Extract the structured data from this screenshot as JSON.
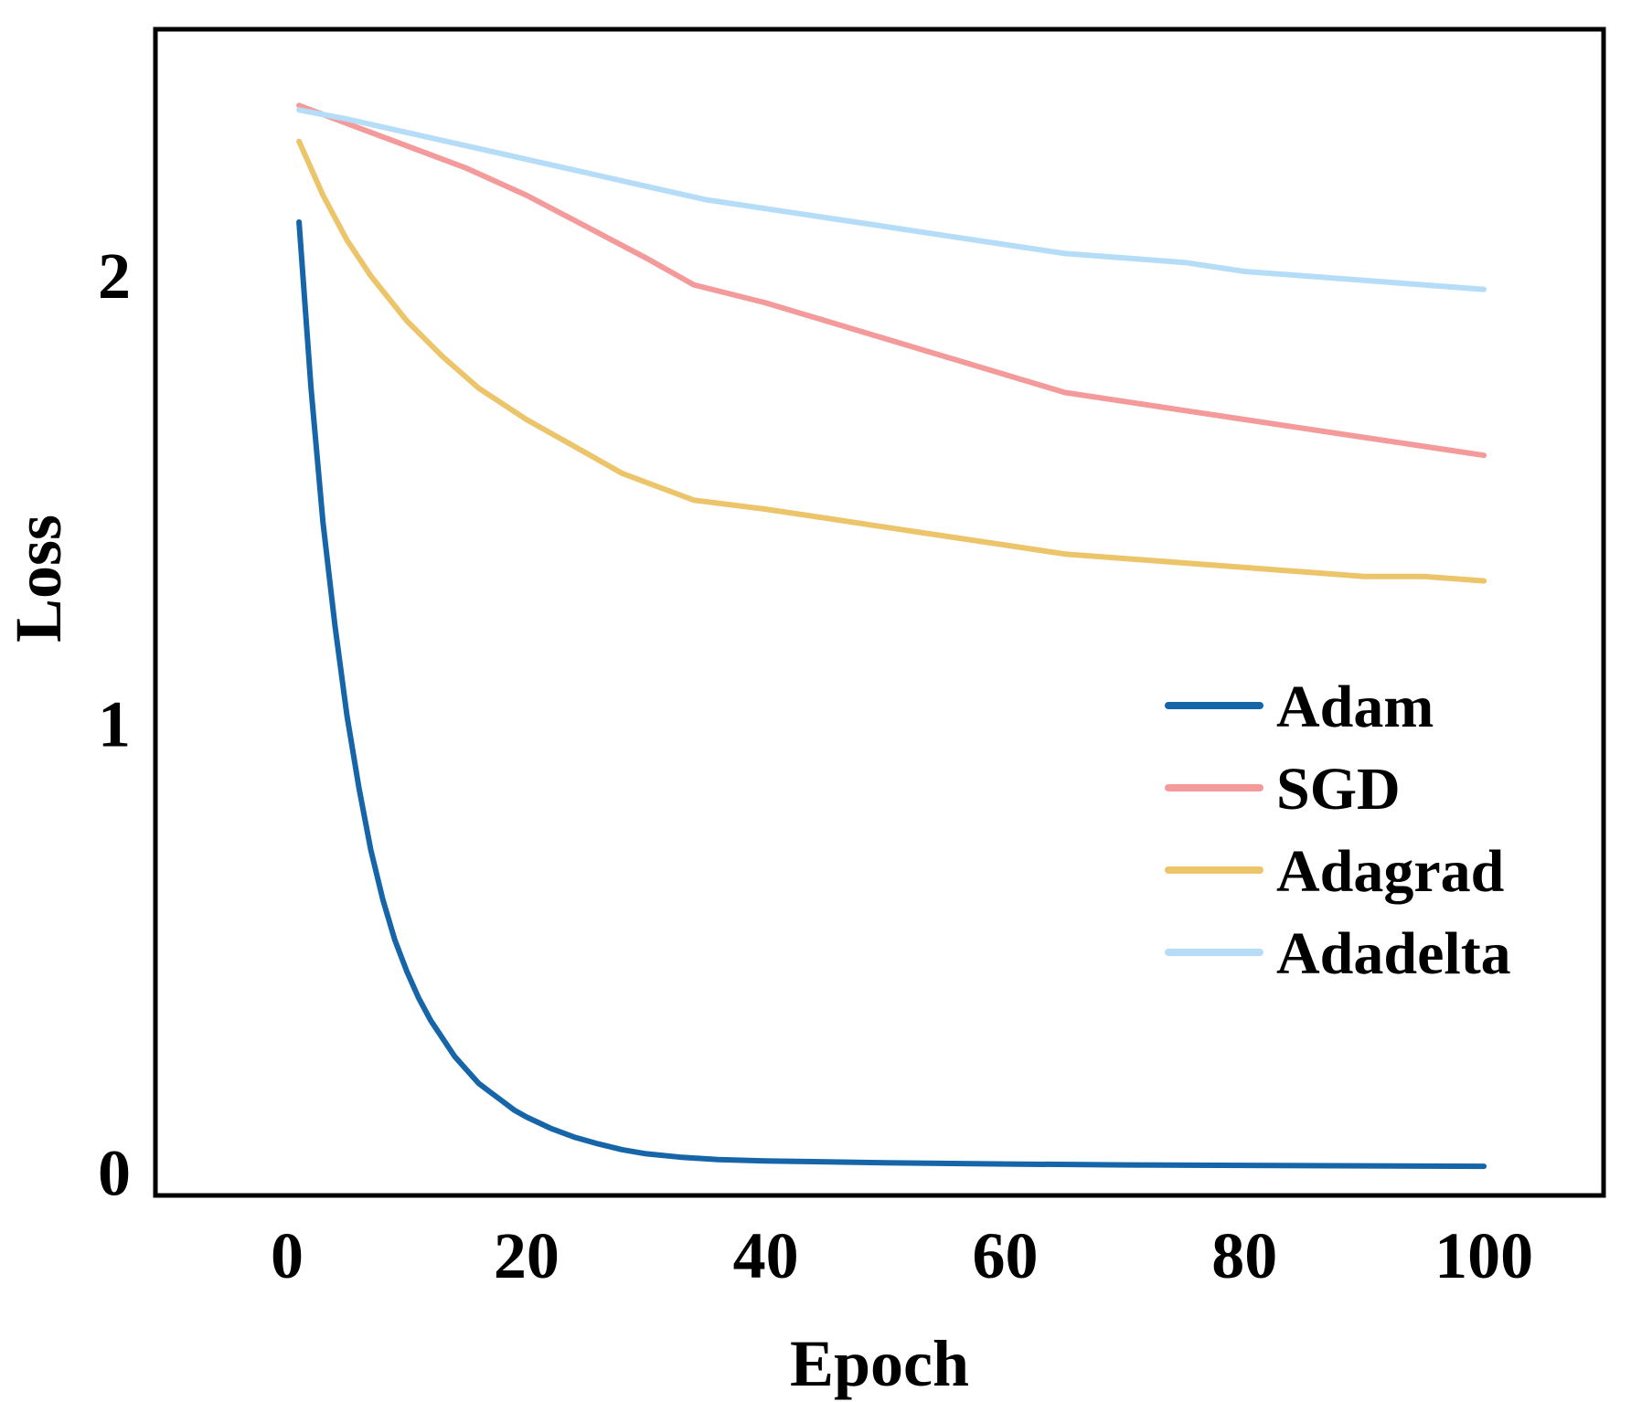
{
  "chart_data": {
    "type": "line",
    "title": "",
    "xlabel": "Epoch",
    "ylabel": "Loss",
    "xlim": [
      -11,
      110
    ],
    "ylim": [
      -0.05,
      2.55
    ],
    "xticks": [
      0,
      20,
      40,
      60,
      80,
      100
    ],
    "yticks": [
      0,
      1,
      2
    ],
    "grid": false,
    "legend_position": "right",
    "series": [
      {
        "name": "Adam",
        "color": "#1565a8",
        "points": [
          [
            1,
            2.12
          ],
          [
            2,
            1.75
          ],
          [
            3,
            1.45
          ],
          [
            4,
            1.22
          ],
          [
            5,
            1.02
          ],
          [
            6,
            0.86
          ],
          [
            7,
            0.72
          ],
          [
            8,
            0.61
          ],
          [
            9,
            0.52
          ],
          [
            10,
            0.45
          ],
          [
            11,
            0.39
          ],
          [
            12,
            0.34
          ],
          [
            13,
            0.3
          ],
          [
            14,
            0.26
          ],
          [
            15,
            0.23
          ],
          [
            16,
            0.2
          ],
          [
            17,
            0.18
          ],
          [
            18,
            0.16
          ],
          [
            19,
            0.14
          ],
          [
            20,
            0.125
          ],
          [
            22,
            0.1
          ],
          [
            24,
            0.08
          ],
          [
            26,
            0.065
          ],
          [
            28,
            0.052
          ],
          [
            30,
            0.043
          ],
          [
            33,
            0.035
          ],
          [
            36,
            0.03
          ],
          [
            40,
            0.027
          ],
          [
            50,
            0.023
          ],
          [
            60,
            0.02
          ],
          [
            70,
            0.018
          ],
          [
            80,
            0.017
          ],
          [
            90,
            0.016
          ],
          [
            100,
            0.015
          ]
        ]
      },
      {
        "name": "SGD",
        "color": "#f59a9a",
        "points": [
          [
            1,
            2.38
          ],
          [
            5,
            2.34
          ],
          [
            10,
            2.29
          ],
          [
            15,
            2.24
          ],
          [
            20,
            2.18
          ],
          [
            25,
            2.11
          ],
          [
            30,
            2.04
          ],
          [
            34,
            1.98
          ],
          [
            40,
            1.94
          ],
          [
            45,
            1.9
          ],
          [
            50,
            1.86
          ],
          [
            55,
            1.82
          ],
          [
            60,
            1.78
          ],
          [
            65,
            1.74
          ],
          [
            70,
            1.72
          ],
          [
            75,
            1.7
          ],
          [
            80,
            1.68
          ],
          [
            85,
            1.66
          ],
          [
            90,
            1.64
          ],
          [
            95,
            1.62
          ],
          [
            100,
            1.6
          ]
        ]
      },
      {
        "name": "Adagrad",
        "color": "#ecc46a",
        "points": [
          [
            1,
            2.3
          ],
          [
            3,
            2.18
          ],
          [
            5,
            2.08
          ],
          [
            7,
            2.0
          ],
          [
            10,
            1.9
          ],
          [
            13,
            1.82
          ],
          [
            16,
            1.75
          ],
          [
            20,
            1.68
          ],
          [
            24,
            1.62
          ],
          [
            28,
            1.56
          ],
          [
            32,
            1.52
          ],
          [
            34,
            1.5
          ],
          [
            40,
            1.48
          ],
          [
            45,
            1.46
          ],
          [
            50,
            1.44
          ],
          [
            55,
            1.42
          ],
          [
            60,
            1.4
          ],
          [
            65,
            1.38
          ],
          [
            70,
            1.37
          ],
          [
            75,
            1.36
          ],
          [
            80,
            1.35
          ],
          [
            85,
            1.34
          ],
          [
            90,
            1.33
          ],
          [
            95,
            1.33
          ],
          [
            100,
            1.32
          ]
        ]
      },
      {
        "name": "Adadelta",
        "color": "#b5ddf8",
        "points": [
          [
            1,
            2.37
          ],
          [
            5,
            2.35
          ],
          [
            10,
            2.32
          ],
          [
            15,
            2.29
          ],
          [
            20,
            2.26
          ],
          [
            25,
            2.23
          ],
          [
            30,
            2.2
          ],
          [
            35,
            2.17
          ],
          [
            40,
            2.15
          ],
          [
            45,
            2.13
          ],
          [
            50,
            2.11
          ],
          [
            55,
            2.09
          ],
          [
            60,
            2.07
          ],
          [
            65,
            2.05
          ],
          [
            70,
            2.04
          ],
          [
            75,
            2.03
          ],
          [
            80,
            2.01
          ],
          [
            85,
            2.0
          ],
          [
            90,
            1.99
          ],
          [
            95,
            1.98
          ],
          [
            100,
            1.97
          ]
        ]
      }
    ]
  }
}
